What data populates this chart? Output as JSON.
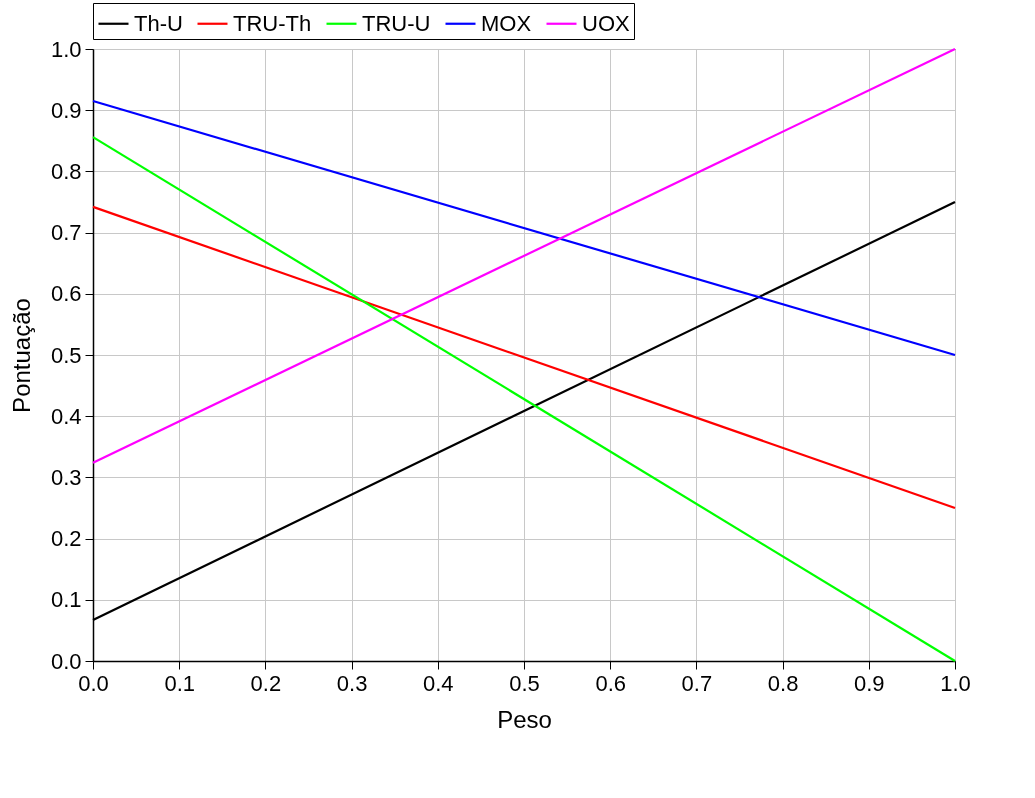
{
  "chart_data": {
    "type": "line",
    "xlabel": "Peso",
    "ylabel": "Pontuação",
    "x": [
      0,
      1
    ],
    "series": [
      {
        "name": "Th-U",
        "color": "#000000",
        "values": [
          0.067,
          0.75
        ]
      },
      {
        "name": "TRU-Th",
        "color": "#ff0000",
        "values": [
          0.742,
          0.25
        ]
      },
      {
        "name": "TRU-U",
        "color": "#00ff00",
        "values": [
          0.856,
          0
        ]
      },
      {
        "name": "MOX",
        "color": "#0000ff",
        "values": [
          0.915,
          0.5
        ]
      },
      {
        "name": "UOX",
        "color": "#ff00ff",
        "values": [
          0.324,
          1
        ]
      }
    ],
    "xlim": [
      0,
      1
    ],
    "ylim": [
      0,
      1
    ],
    "xticks": [
      {
        "value": 0,
        "label": "0.0"
      },
      0.1,
      0.2,
      0.3,
      0.4,
      0.5,
      0.6,
      0.7,
      0.8,
      0.9,
      {
        "value": 1,
        "label": "1.0"
      }
    ],
    "yticks": [
      {
        "value": 0,
        "label": "0.0"
      },
      0.1,
      0.2,
      0.3,
      0.4,
      0.5,
      0.6,
      0.7,
      0.8,
      0.9,
      {
        "value": 1,
        "label": "1.0"
      }
    ],
    "grid": true,
    "legend": "top",
    "line_style": "solid",
    "marker": "none"
  }
}
